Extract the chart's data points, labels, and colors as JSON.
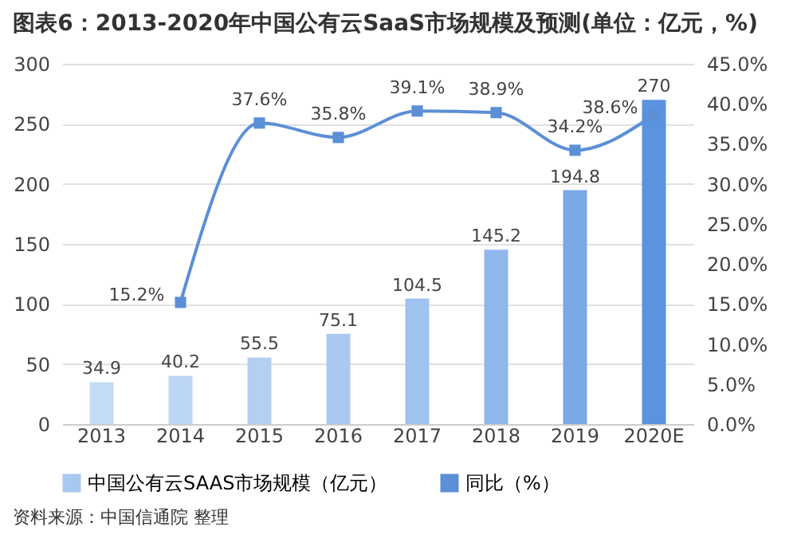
{
  "chart_data": {
    "type": "bar",
    "title": "图表6：2013-2020年中国公有云SaaS市场规模及预测(单位：亿元，%)",
    "categories": [
      "2013",
      "2014",
      "2015",
      "2016",
      "2017",
      "2018",
      "2019",
      "2020E"
    ],
    "series": [
      {
        "name": "中国公有云SAAS市场规模（亿元）",
        "color": "#a9c8f0",
        "colors": [
          "#c3dbf6",
          "#bcd6f5",
          "#b3d0f3",
          "#a9c9f1",
          "#9fc2ef",
          "#8fb7ec",
          "#7aa8e7",
          "#5a93e0"
        ],
        "values": [
          34.9,
          40.2,
          55.5,
          75.1,
          104.5,
          145.2,
          194.8,
          270
        ],
        "value_labels": [
          "34.9",
          "40.2",
          "55.5",
          "75.1",
          "104.5",
          "145.2",
          "194.8",
          "270"
        ]
      },
      {
        "name": "同比（%）",
        "type": "line",
        "axis": "y2",
        "color": "#5b8fd6",
        "marker": "square",
        "values": [
          null,
          15.2,
          37.6,
          35.8,
          39.1,
          38.9,
          34.2,
          38.6
        ],
        "value_labels": [
          null,
          "15.2%",
          "37.6%",
          "35.8%",
          "39.1%",
          "38.9%",
          "34.2%",
          "38.6%"
        ]
      }
    ],
    "ylim": [
      0,
      300
    ],
    "yticks": [
      0,
      50,
      100,
      150,
      200,
      250,
      300
    ],
    "y2lim": [
      0,
      45
    ],
    "y2ticks": [
      {
        "value": 0,
        "label": "0.0%"
      },
      {
        "value": 5,
        "label": "5.0%"
      },
      {
        "value": 10,
        "label": "10.0%"
      },
      {
        "value": 15,
        "label": "15.0%"
      },
      {
        "value": 20,
        "label": "20.0%"
      },
      {
        "value": 25,
        "label": "25.0%"
      },
      {
        "value": 30,
        "label": "30.0%"
      },
      {
        "value": 35,
        "label": "35.0%"
      },
      {
        "value": 40,
        "label": "40.0%"
      },
      {
        "value": 45,
        "label": "45.0%"
      }
    ],
    "grid": "y",
    "legend": "bottom",
    "annotations": [
      "资料来源：中国信通院 整理"
    ]
  }
}
